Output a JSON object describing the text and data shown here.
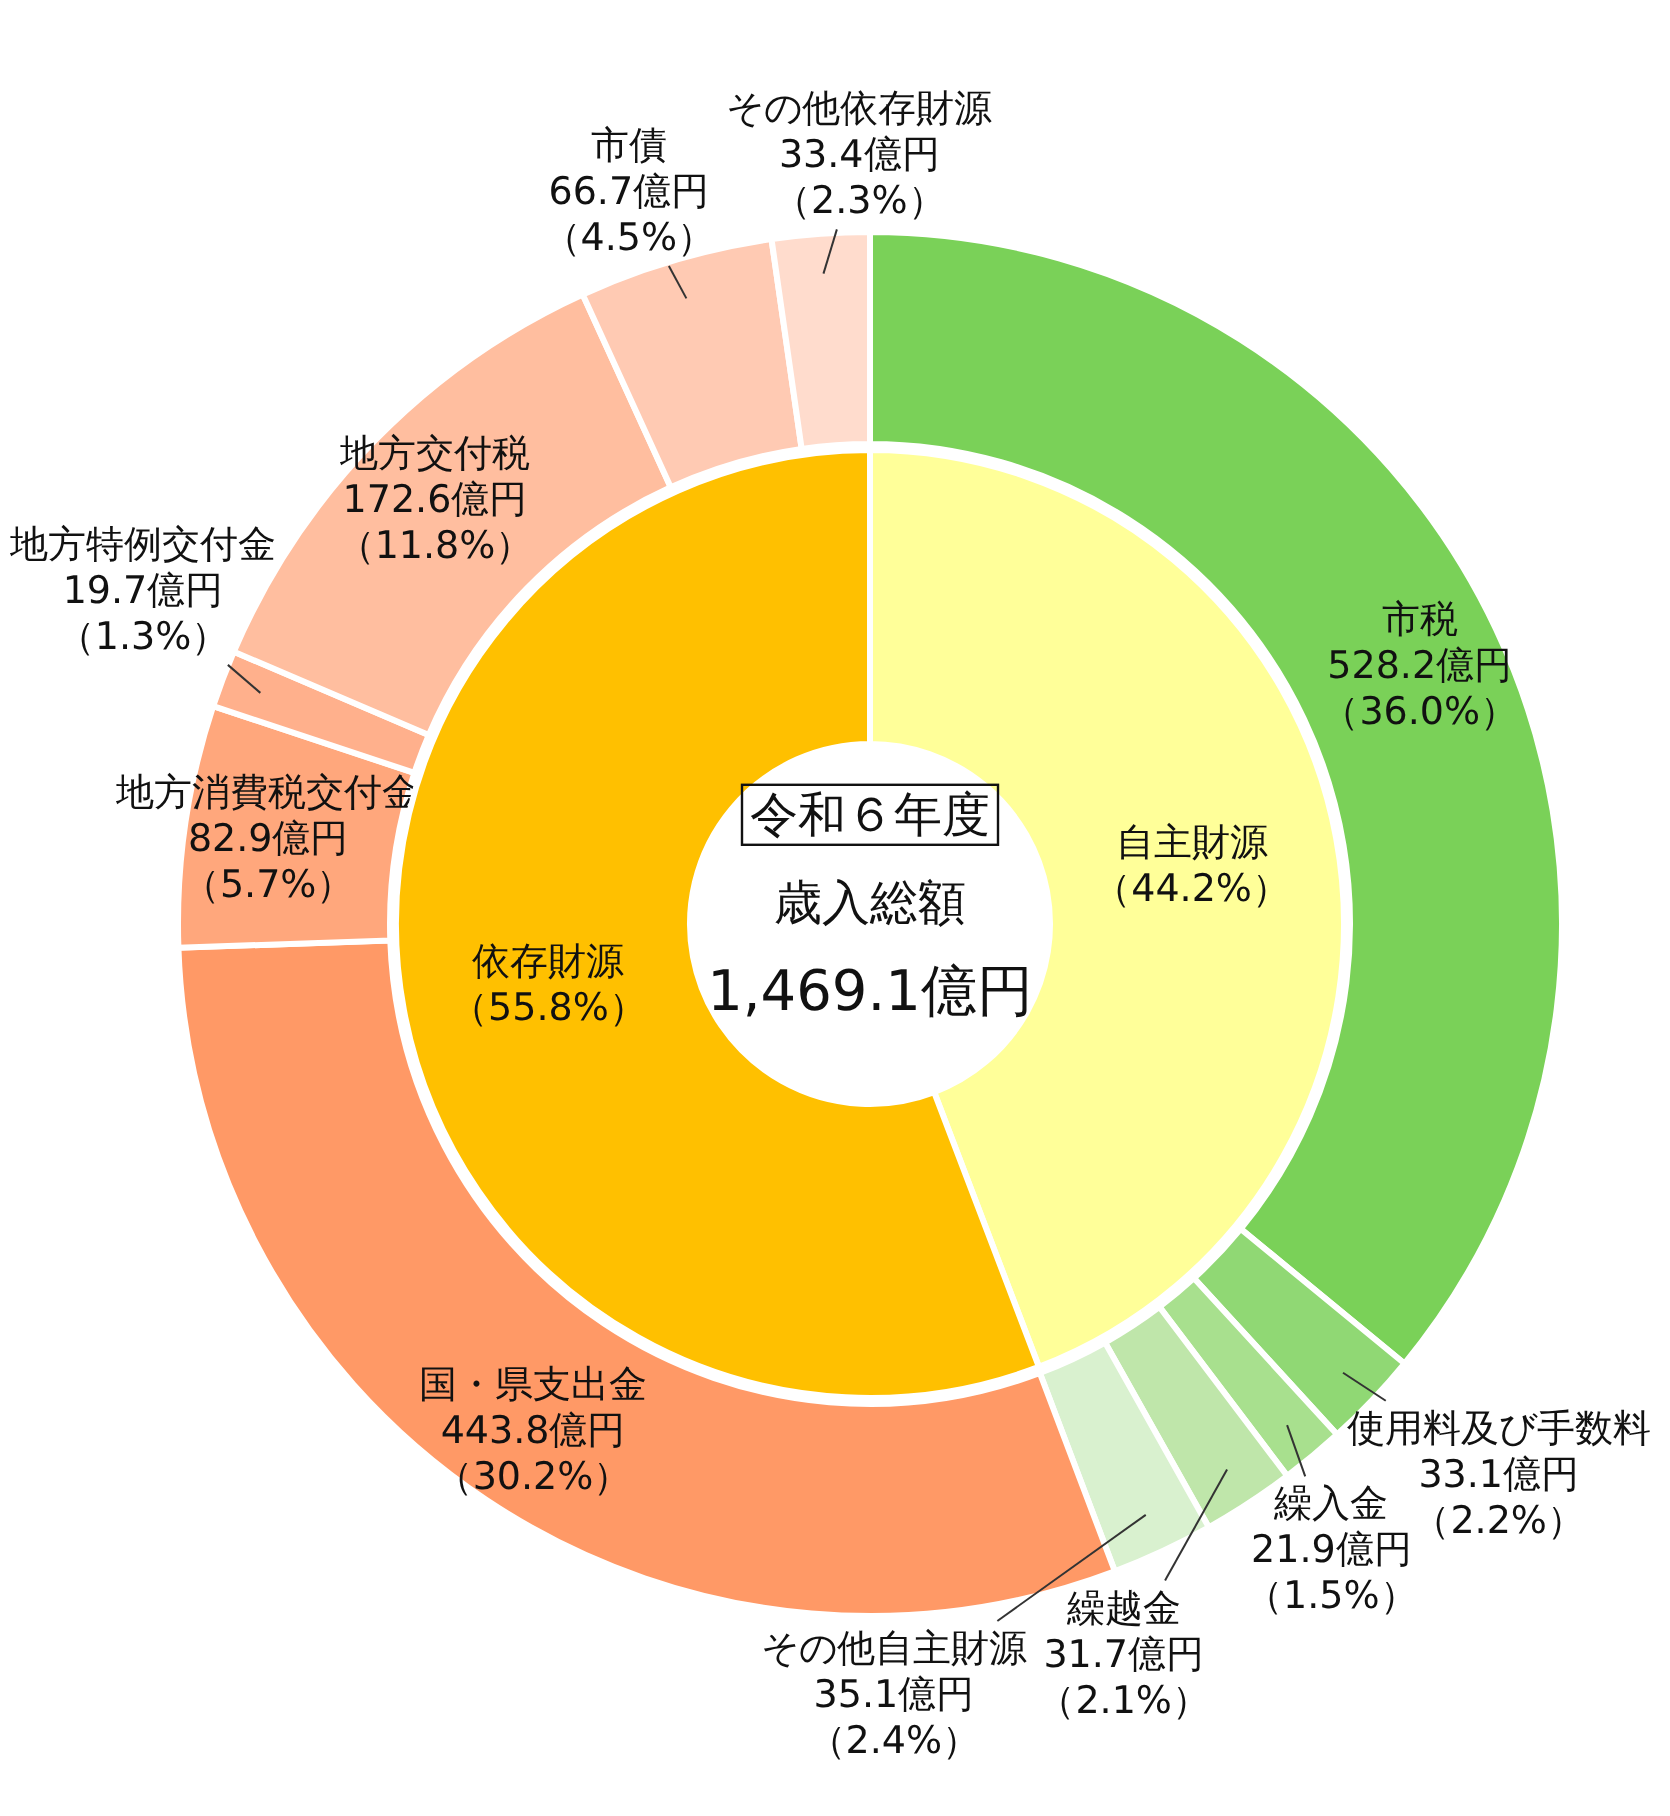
{
  "chart_data": [
    {
      "type": "donut",
      "categories": [
        "市税",
        "使用料及び手数料",
        "繰入金",
        "繰越金",
        "その他自主財源",
        "国・県支出金",
        "地方消費税交付金",
        "地方特例交付金",
        "地方交付税",
        "市債",
        "その他依存財源"
      ],
      "values": [
        528.2,
        33.1,
        21.9,
        31.7,
        35.1,
        443.8,
        82.9,
        19.7,
        172.6,
        66.7,
        33.4
      ],
      "colors": [
        "#7ad158",
        "#90d874",
        "#a8e08e",
        "#bfe6aa",
        "#d9f1cf",
        "#ff9966",
        "#ffa77c",
        "#ffb08c",
        "#ffbe9f",
        "#ffcab3",
        "#ffdccd"
      ],
      "value_labels": [
        "528.2億円（36.0%）",
        "33.1億円（2.2%）",
        "21.9億円（1.5%）",
        "31.7億円（2.1%）",
        "35.1億円（2.4%）",
        "443.8億円（30.2%）",
        "82.9億円（5.7%）",
        "19.7億円（1.3%）",
        "172.6億円（11.8%）",
        "66.7億円（4.5%）",
        "33.4億円（2.3%）"
      ]
    },
    {
      "type": "donut",
      "title": "令和６年度",
      "subtitle": "歳入総額",
      "annotations": [
        "1,469.1億円"
      ],
      "categories": [
        "自主財源",
        "依存財源"
      ],
      "values": [
        44.2,
        55.8
      ],
      "colors": [
        "#ffff99",
        "#ffc000"
      ],
      "value_labels": [
        "（44.2%）",
        "（55.8%）"
      ]
    }
  ]
}
